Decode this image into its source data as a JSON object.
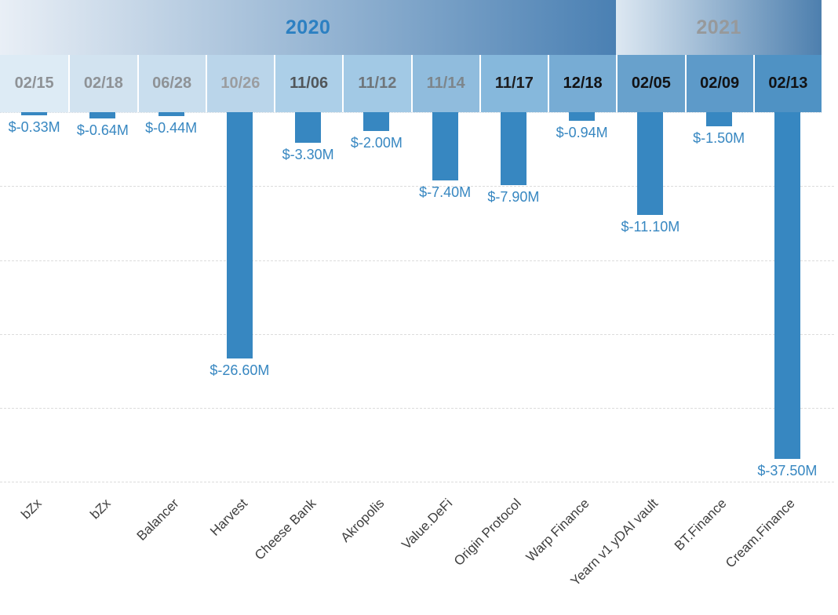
{
  "chart_data": {
    "type": "bar",
    "title": "",
    "xlabel": "",
    "ylabel": "",
    "ylim": [
      -40,
      0
    ],
    "gridline_interval_musd": 8,
    "grid": "dashed-horizontal",
    "orientation": "vertical-negative",
    "year_groups": [
      {
        "label": "2020",
        "span": 9,
        "text_color": "#2c80c2",
        "bg_gradient": [
          "#e9eff6",
          "#4a80b3"
        ]
      },
      {
        "label": "2021",
        "span": 3,
        "text_color": "#97999b",
        "bg_gradient": [
          "#dde8f2",
          "#4d7fae"
        ]
      }
    ],
    "bar_color": "#3787c1",
    "value_label_color": "#3787c1",
    "columns": [
      {
        "date": "02/15",
        "protocol": "bZx",
        "value_musd": -0.33,
        "value_label": "$-0.33M",
        "header_bg": "#ddebf5",
        "header_text": "#8e9296"
      },
      {
        "date": "02/18",
        "protocol": "bZx",
        "value_musd": -0.64,
        "value_label": "$-0.64M",
        "header_bg": "#d2e3f0",
        "header_text": "#8e9296"
      },
      {
        "date": "06/28",
        "protocol": "Balancer",
        "value_musd": -0.44,
        "value_label": "$-0.44M",
        "header_bg": "#c9deee",
        "header_text": "#8e9296"
      },
      {
        "date": "10/26",
        "protocol": "Harvest",
        "value_musd": -26.6,
        "value_label": "$-26.60M",
        "header_bg": "#bad5ea",
        "header_text": "#9b9da0"
      },
      {
        "date": "11/06",
        "protocol": "Cheese Bank",
        "value_musd": -3.3,
        "value_label": "$-3.30M",
        "header_bg": "#accfe8",
        "header_text": "#51565a"
      },
      {
        "date": "11/12",
        "protocol": "Akropolis",
        "value_musd": -2.0,
        "value_label": "$-2.00M",
        "header_bg": "#a2c9e5",
        "header_text": "#6f757a"
      },
      {
        "date": "11/14",
        "protocol": "Value.DeFi",
        "value_musd": -7.4,
        "value_label": "$-7.40M",
        "header_bg": "#90bcdd",
        "header_text": "#7d868c"
      },
      {
        "date": "11/17",
        "protocol": "Origin Protocol",
        "value_musd": -7.9,
        "value_label": "$-7.90M",
        "header_bg": "#86b8dc",
        "header_text": "#1d1d1f"
      },
      {
        "date": "12/18",
        "protocol": "Warp Finance",
        "value_musd": -0.94,
        "value_label": "$-0.94M",
        "header_bg": "#77acd4",
        "header_text": "#121214"
      },
      {
        "date": "02/05",
        "protocol": "Yearn v1 yDAI vault",
        "value_musd": -11.1,
        "value_label": "$-11.10M",
        "header_bg": "#68a1cc",
        "header_text": "#121214"
      },
      {
        "date": "02/09",
        "protocol": "BT.Finance",
        "value_musd": -1.5,
        "value_label": "$-1.50M",
        "header_bg": "#5d9ac9",
        "header_text": "#121214"
      },
      {
        "date": "02/13",
        "protocol": "Cream.Finance",
        "value_musd": -37.5,
        "value_label": "$-37.50M",
        "header_bg": "#4f92c4",
        "header_text": "#121214"
      }
    ]
  }
}
